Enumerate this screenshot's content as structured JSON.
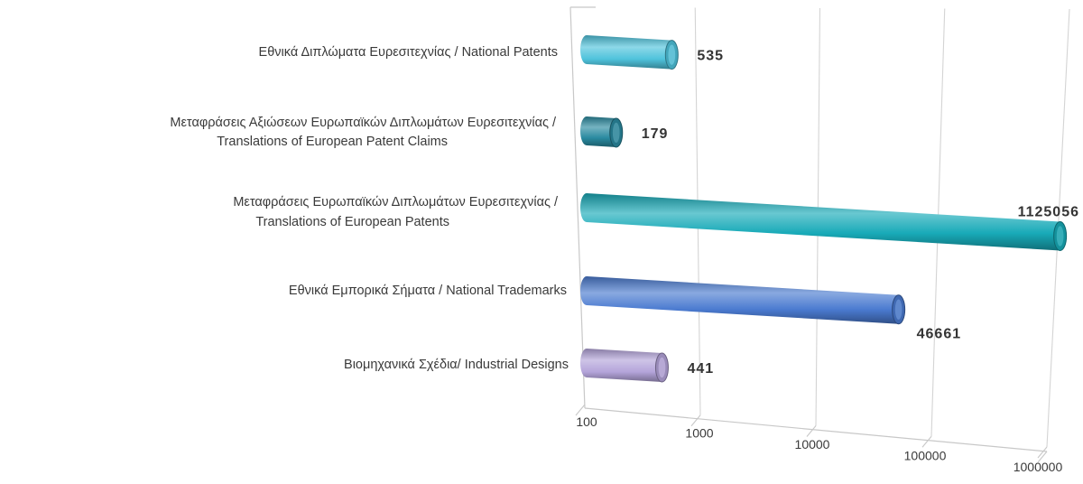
{
  "chart_data": {
    "type": "bar",
    "orientation": "horizontal",
    "style": "3d-cylinder",
    "x_scale": "log",
    "xlim": [
      100,
      1000000
    ],
    "x_ticks": [
      "100",
      "1000",
      "10000",
      "100000",
      "1000000"
    ],
    "grid": true,
    "legend": "none",
    "title": "",
    "xlabel": "",
    "ylabel": "",
    "categories": [
      {
        "lines": [
          "Εθνικά Διπλώματα Ευρεσιτεχνίας / National Patents"
        ]
      },
      {
        "lines": [
          "Μεταφράσεις Αξιώσεων Ευρωπαϊκών Διπλωμάτων Ευρεσιτεχνίας /",
          "Translations of European Patent Claims"
        ]
      },
      {
        "lines": [
          "Μεταφράσεις Ευρωπαϊκών Διπλωμάτων Ευρεσιτεχνίας /",
          "Translations of European Patents"
        ]
      },
      {
        "lines": [
          "Εθνικά Εμπορικά Σήματα / National Trademarks"
        ]
      },
      {
        "lines": [
          "Βιομηχανικά Σχέδια/ Industrial Designs"
        ]
      }
    ],
    "values": [
      535,
      179,
      1125056,
      46661,
      441
    ],
    "data_labels": [
      "535",
      "179",
      "1125056",
      "46661",
      "441"
    ],
    "colors": [
      "#4fc3dc",
      "#2a8aa0",
      "#18aab8",
      "#4a7ad0",
      "#b4a4da"
    ]
  }
}
